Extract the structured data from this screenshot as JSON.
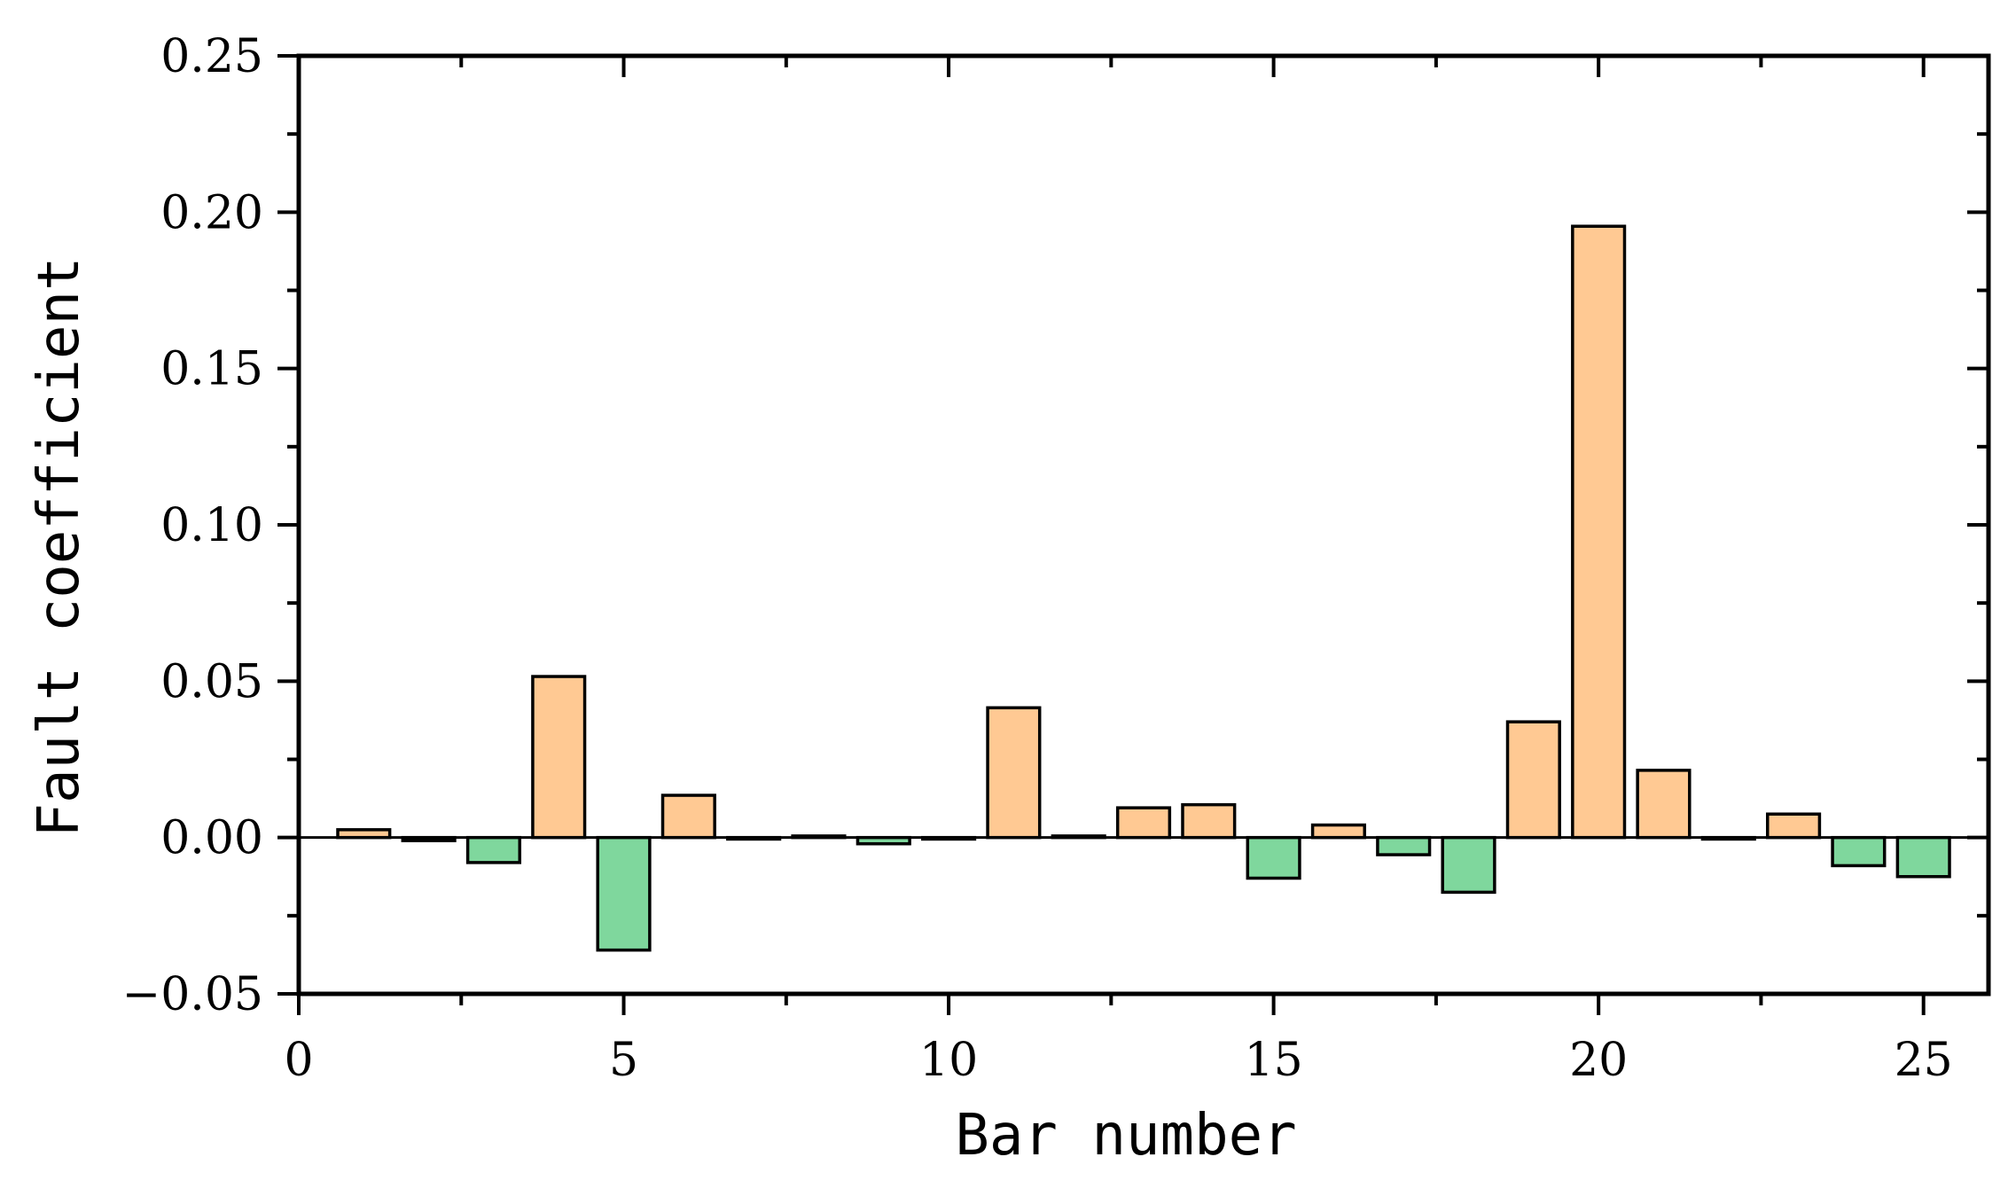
{
  "chart_data": {
    "type": "bar",
    "title": "",
    "xlabel": "Bar number",
    "ylabel": "Fault coefficient",
    "xlim": [
      0,
      26
    ],
    "ylim": [
      -0.05,
      0.25
    ],
    "xticks": [
      0,
      5,
      10,
      15,
      20,
      25
    ],
    "xtick_labels": [
      "0",
      "5",
      "10",
      "15",
      "20",
      "25"
    ],
    "yticks": [
      -0.05,
      0.0,
      0.05,
      0.1,
      0.15,
      0.2,
      0.25
    ],
    "ytick_labels": [
      "−0.05",
      "0.00",
      "0.05",
      "0.10",
      "0.15",
      "0.20",
      "0.25"
    ],
    "grid": false,
    "legend": "none",
    "colors": {
      "positive": "#FFC993",
      "negative": "#7FD79D",
      "stroke": "#000000"
    },
    "x": [
      1,
      2,
      3,
      4,
      5,
      6,
      7,
      8,
      9,
      10,
      11,
      12,
      13,
      14,
      15,
      16,
      17,
      18,
      19,
      20,
      21,
      22,
      23,
      24,
      25
    ],
    "values": [
      0.0025,
      -0.001,
      -0.008,
      0.0515,
      -0.036,
      0.0135,
      -0.0005,
      0.0005,
      -0.002,
      -0.0005,
      0.0415,
      0.0005,
      0.0095,
      0.0105,
      -0.013,
      0.004,
      -0.0055,
      -0.0175,
      0.037,
      0.1955,
      0.0215,
      -0.0005,
      0.0075,
      -0.009,
      -0.0125
    ]
  }
}
